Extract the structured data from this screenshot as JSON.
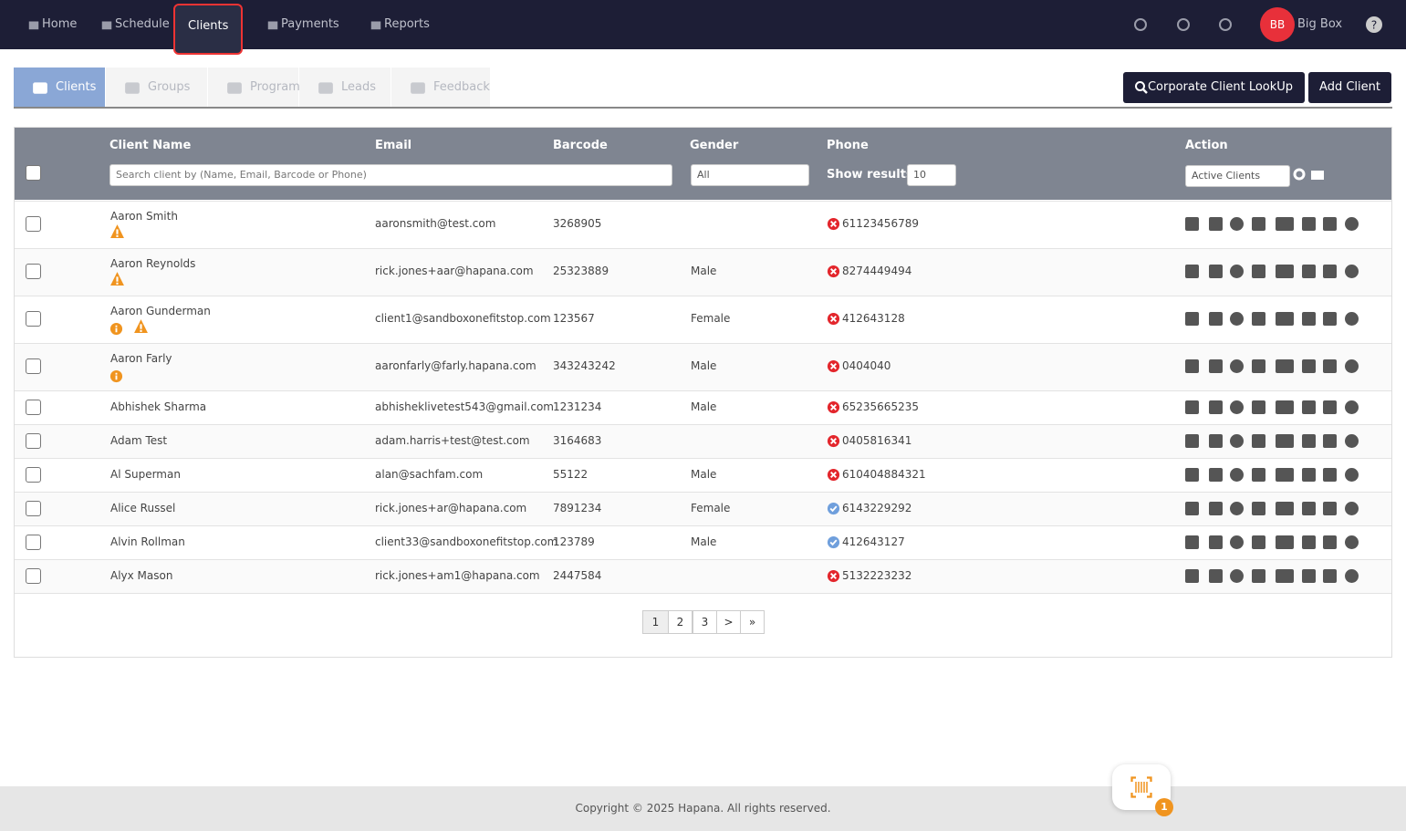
{
  "nav": {
    "items": [
      "Home",
      "Schedule",
      "Clients",
      "Payments",
      "Reports"
    ],
    "active": 2,
    "user_initials": "BB",
    "user_name": "Big Box"
  },
  "tabs": {
    "items": [
      "Clients",
      "Groups",
      "Programs",
      "Leads",
      "Feedback"
    ],
    "active": 0
  },
  "buttons": [
    "Corporate Client LookUp",
    "Add Client"
  ],
  "table": {
    "headers": [
      "Client Name",
      "Email",
      "Barcode",
      "Gender",
      "Phone",
      "Action"
    ],
    "search_placeholder": "Search client by (Name, Email, Barcode or Phone)",
    "gender_filter": "All",
    "show_results_label": "Show results:",
    "show_results_value": "10",
    "status_filter": "Active Clients",
    "rows": [
      {
        "name": "Aaron Smith",
        "email": "aaronsmith@test.com",
        "barcode": "3268905",
        "phone": "61123456789",
        "verified": false,
        "warning": true,
        "info": false
      },
      {
        "name": "Aaron Reynolds",
        "email": "rick.jones+aar@hapana.com",
        "barcode": "25323889",
        "gender": "Male",
        "phone": "8274449494",
        "verified": false,
        "warning": true,
        "info": false
      },
      {
        "name": "Aaron Gunderman",
        "email": "client1@sandboxonefitstop.com",
        "barcode": "123567",
        "gender": "Female",
        "phone": "412643128",
        "verified": false,
        "warning": true,
        "info": true
      },
      {
        "name": "Aaron Farly",
        "email": "aaronfarly@farly.hapana.com",
        "barcode": "343243242",
        "gender": "Male",
        "phone": "0404040",
        "verified": false,
        "warning": false,
        "info": true
      },
      {
        "name": "Abhishek Sharma",
        "email": "abhisheklivetest543@gmail.com",
        "barcode": "1231234",
        "gender": "Male",
        "phone": "65235665235",
        "verified": false,
        "warning": false,
        "info": false
      },
      {
        "name": "Adam Test",
        "email": "adam.harris+test@test.com",
        "barcode": "3164683",
        "phone": "0405816341",
        "verified": false,
        "warning": false,
        "info": false
      },
      {
        "name": "Al Superman",
        "email": "alan@sachfam.com",
        "barcode": "55122",
        "gender": "Male",
        "phone": "610404884321",
        "verified": false,
        "warning": false,
        "info": false
      },
      {
        "name": "Alice Russel",
        "email": "rick.jones+ar@hapana.com",
        "barcode": "7891234",
        "gender": "Female",
        "phone": "6143229292",
        "verified": true,
        "warning": false,
        "info": false
      },
      {
        "name": "Alvin Rollman",
        "email": "client33@sandboxonefitstop.com",
        "barcode": "123789",
        "gender": "Male",
        "phone": "412643127",
        "verified": true,
        "warning": false,
        "info": false
      },
      {
        "name": "Alyx Mason",
        "email": "rick.jones+am1@hapana.com",
        "barcode": "2447584",
        "phone": "5132223232",
        "verified": false,
        "warning": false,
        "info": false
      }
    ]
  },
  "pagination": {
    "items": [
      "1",
      "2",
      "3",
      ">",
      "»"
    ],
    "active": 0
  },
  "footer": "Copyright © 2025 Hapana. All rights reserved.",
  "scan_badge": "1"
}
